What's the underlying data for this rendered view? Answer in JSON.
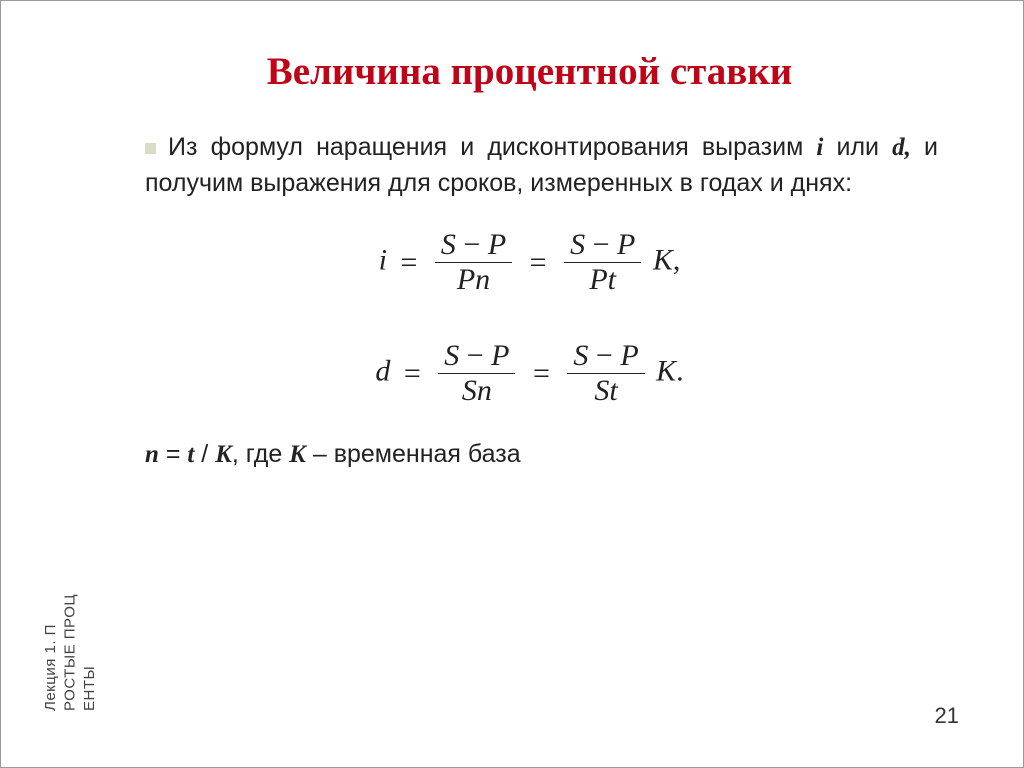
{
  "title": "Величина процентной ставки",
  "paragraph": {
    "pre": "Из формул наращения и дисконтирования выразим ",
    "i": "i",
    "or": " или ",
    "d": "d,",
    "post": " и получим выражения для сроков, измеренных в годах и днях:"
  },
  "formula1": {
    "lhs": "i",
    "eq": "=",
    "frac1_num_a": "S",
    "frac1_num_op": "−",
    "frac1_num_b": "P",
    "frac1_den": "Pn",
    "frac2_num_a": "S",
    "frac2_num_op": "−",
    "frac2_num_b": "P",
    "frac2_den": "Pt",
    "tail": "K",
    "punct": ","
  },
  "formula2": {
    "lhs": "d",
    "eq": "=",
    "frac1_num_a": "S",
    "frac1_num_op": "−",
    "frac1_num_b": "P",
    "frac1_den": "Sn",
    "frac2_num_a": "S",
    "frac2_num_op": "−",
    "frac2_num_b": "P",
    "frac2_den": "St",
    "tail": "K",
    "punct": "."
  },
  "note": {
    "n": "n",
    "eq": " = ",
    "t": "t",
    "slash": " / ",
    "K": "K",
    "rest_pre": ", где ",
    "K2": "K",
    "rest_post": " – временная база"
  },
  "side_label": "Лекция 1. П\nРОСТЫЕ ПРОЦ\nЕНТЫ",
  "page_number": "21",
  "colors": {
    "title": "#c00418",
    "bullet": "#d9dcc7",
    "text": "#222222",
    "background": "#ffffff"
  },
  "typography": {
    "title_fontsize": 39,
    "body_fontsize": 25,
    "formula_fontsize": 30,
    "side_fontsize": 15,
    "pageno_fontsize": 22
  }
}
